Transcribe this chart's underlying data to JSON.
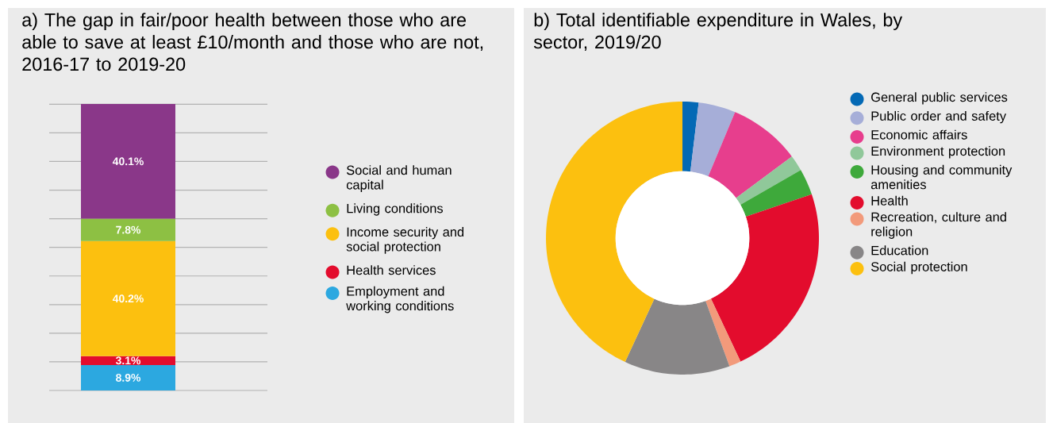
{
  "chart_data": [
    {
      "type": "bar",
      "title": "a) The gap in fair/poor health between those who are able to save at least £10/month and those who are not, 2016-17 to 2019-20",
      "stacked": true,
      "categories": [
        null
      ],
      "series": [
        {
          "name": "Employment and working conditions",
          "color": "#2ca8e0",
          "values": [
            8.9
          ],
          "value_labels": [
            "8.9%"
          ]
        },
        {
          "name": "Health services",
          "color": "#e30c2d",
          "values": [
            3.1
          ],
          "value_labels": [
            "3.1%"
          ]
        },
        {
          "name": "Income security and social protection",
          "color": "#fcc00f",
          "values": [
            40.2
          ],
          "value_labels": [
            "40.2%"
          ]
        },
        {
          "name": "Living conditions",
          "color": "#8dc043",
          "values": [
            7.8
          ],
          "value_labels": [
            "7.8%"
          ]
        },
        {
          "name": "Social and human capital",
          "color": "#8a3789",
          "values": [
            40.1
          ],
          "value_labels": [
            "40.1%"
          ]
        }
      ],
      "ylim": [
        0,
        100.1
      ],
      "yticks": [
        {
          "value": 0,
          "label": null
        },
        {
          "value": 10,
          "label": null
        },
        {
          "value": 20,
          "label": null
        },
        {
          "value": 30,
          "label": null
        },
        {
          "value": 40,
          "label": null
        },
        {
          "value": 50,
          "label": null
        },
        {
          "value": 60,
          "label": null
        },
        {
          "value": 70,
          "label": null
        },
        {
          "value": 80,
          "label": null
        },
        {
          "value": 90,
          "label": null
        },
        {
          "value": 100,
          "label": null
        }
      ],
      "grid": "y",
      "legend": "right"
    },
    {
      "type": "donut",
      "title": "b) Total identifiable expenditure in Wales, by sector, 2019/20",
      "categories": [
        "General public services",
        "Public order and safety",
        "Economic affairs",
        "Environment protection",
        "Housing and community amenities",
        "Health",
        "Recreation, culture and religion",
        "Education",
        "Social protection"
      ],
      "values": [
        1.9,
        4.4,
        8.5,
        1.9,
        3.1,
        23.2,
        1.4,
        12.5,
        43.1
      ],
      "colors": [
        "#0469b5",
        "#a6aed8",
        "#e73e8d",
        "#90c89a",
        "#3ea93b",
        "#e30c2d",
        "#f29a7b",
        "#888687",
        "#fcc00f"
      ],
      "legend": "right"
    }
  ]
}
